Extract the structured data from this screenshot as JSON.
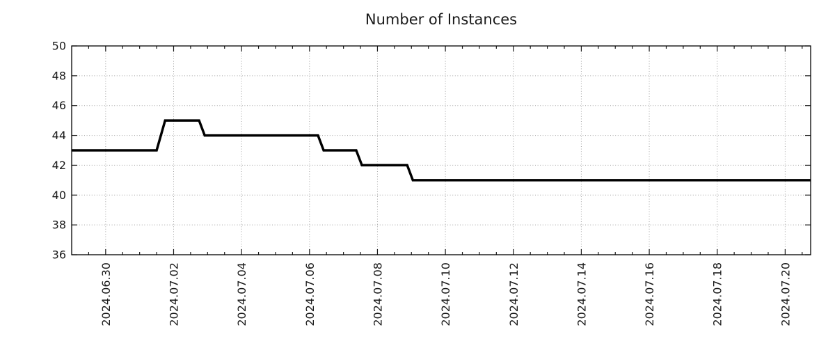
{
  "chart_data": {
    "type": "line",
    "title": "Number of Instances",
    "legend": {
      "show": false
    },
    "grid": {
      "show": true,
      "style": "dotted",
      "color": "#a3a3a3"
    },
    "colors": {
      "line": "#000000",
      "text": "#1a1a1a",
      "border": "#000000",
      "background": "#ffffff"
    },
    "x_axis": {
      "start": "2024-06-29 00:00",
      "end": "2024-07-20 18:00",
      "minor_tick_interval_hours": 12,
      "major_ticks": [
        {
          "date": "2024-06-30 00:00",
          "label": "2024.06.30"
        },
        {
          "date": "2024-07-02 00:00",
          "label": "2024.07.02"
        },
        {
          "date": "2024-07-04 00:00",
          "label": "2024.07.04"
        },
        {
          "date": "2024-07-06 00:00",
          "label": "2024.07.06"
        },
        {
          "date": "2024-07-08 00:00",
          "label": "2024.07.08"
        },
        {
          "date": "2024-07-10 00:00",
          "label": "2024.07.10"
        },
        {
          "date": "2024-07-12 00:00",
          "label": "2024.07.12"
        },
        {
          "date": "2024-07-14 00:00",
          "label": "2024.07.14"
        },
        {
          "date": "2024-07-16 00:00",
          "label": "2024.07.16"
        },
        {
          "date": "2024-07-18 00:00",
          "label": "2024.07.18"
        },
        {
          "date": "2024-07-20 00:00",
          "label": "2024.07.20"
        }
      ]
    },
    "y_axis": {
      "min": 36,
      "max": 50,
      "tick_step": 2,
      "ticks": [
        {
          "value": 36,
          "label": "36"
        },
        {
          "value": 38,
          "label": "38"
        },
        {
          "value": 40,
          "label": "40"
        },
        {
          "value": 42,
          "label": "42"
        },
        {
          "value": 44,
          "label": "44"
        },
        {
          "value": 46,
          "label": "46"
        },
        {
          "value": 48,
          "label": "48"
        },
        {
          "value": 50,
          "label": "50"
        }
      ]
    },
    "series": [
      {
        "name": "instances",
        "color": "#000000",
        "line_width": 3.5,
        "points": [
          {
            "date": "2024-06-29 00:00",
            "value": 43
          },
          {
            "date": "2024-07-01 12:00",
            "value": 43
          },
          {
            "date": "2024-07-01 18:00",
            "value": 45
          },
          {
            "date": "2024-07-02 18:00",
            "value": 45
          },
          {
            "date": "2024-07-02 22:00",
            "value": 44
          },
          {
            "date": "2024-07-06 06:00",
            "value": 44
          },
          {
            "date": "2024-07-06 10:00",
            "value": 43
          },
          {
            "date": "2024-07-07 09:00",
            "value": 43
          },
          {
            "date": "2024-07-07 13:00",
            "value": 42
          },
          {
            "date": "2024-07-08 21:00",
            "value": 42
          },
          {
            "date": "2024-07-09 01:00",
            "value": 41
          },
          {
            "date": "2024-07-20 18:00",
            "value": 41
          }
        ]
      }
    ]
  }
}
